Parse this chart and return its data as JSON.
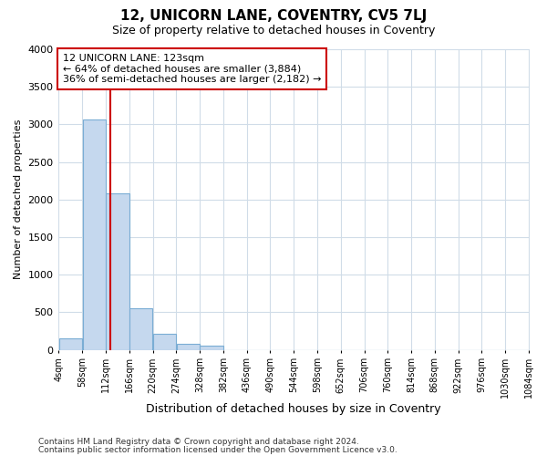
{
  "title1": "12, UNICORN LANE, COVENTRY, CV5 7LJ",
  "title2": "Size of property relative to detached houses in Coventry",
  "xlabel": "Distribution of detached houses by size in Coventry",
  "ylabel": "Number of detached properties",
  "bar_color": "#c5d8ee",
  "bar_edge_color": "#7aadd4",
  "bins": [
    "4sqm",
    "58sqm",
    "112sqm",
    "166sqm",
    "220sqm",
    "274sqm",
    "328sqm",
    "382sqm",
    "436sqm",
    "490sqm",
    "544sqm",
    "598sqm",
    "652sqm",
    "706sqm",
    "760sqm",
    "814sqm",
    "868sqm",
    "922sqm",
    "976sqm",
    "1030sqm",
    "1084sqm"
  ],
  "values": [
    150,
    3060,
    2080,
    555,
    210,
    80,
    55,
    0,
    0,
    0,
    0,
    0,
    0,
    0,
    0,
    0,
    0,
    0,
    0,
    0
  ],
  "bin_width": 54,
  "bin_starts": [
    4,
    58,
    112,
    166,
    220,
    274,
    328,
    382,
    436,
    490,
    544,
    598,
    652,
    706,
    760,
    814,
    868,
    922,
    976,
    1030
  ],
  "property_size": 123,
  "vline_color": "#cc0000",
  "annotation_line1": "12 UNICORN LANE: 123sqm",
  "annotation_line2": "← 64% of detached houses are smaller (3,884)",
  "annotation_line3": "36% of semi-detached houses are larger (2,182) →",
  "annotation_box_color": "white",
  "annotation_box_edge": "#cc0000",
  "ylim": [
    0,
    4000
  ],
  "yticks": [
    0,
    500,
    1000,
    1500,
    2000,
    2500,
    3000,
    3500,
    4000
  ],
  "footnote1": "Contains HM Land Registry data © Crown copyright and database right 2024.",
  "footnote2": "Contains public sector information licensed under the Open Government Licence v3.0.",
  "bg_color": "#ffffff",
  "plot_bg_color": "#ffffff",
  "grid_color": "#d0dce8"
}
